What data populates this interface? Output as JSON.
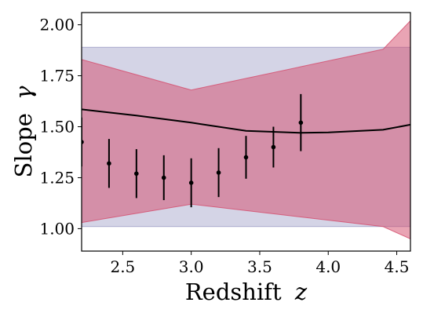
{
  "chart_data": {
    "type": "line",
    "xlabel_text": "Redshift",
    "xlabel_symbol": "z",
    "ylabel_text": "Slope",
    "ylabel_symbol": "γ",
    "xlim": [
      2.2,
      4.6
    ],
    "ylim": [
      0.89,
      2.06
    ],
    "xticks": [
      2.5,
      3.0,
      3.5,
      4.0,
      4.5
    ],
    "xtick_labels": [
      "2.5",
      "3.0",
      "3.5",
      "4.0",
      "4.5"
    ],
    "yticks": [
      1.0,
      1.25,
      1.5,
      1.75,
      2.0
    ],
    "ytick_labels": [
      "1.00",
      "1.25",
      "1.50",
      "1.75",
      "2.00"
    ],
    "grid": false,
    "series": [
      {
        "kind": "band",
        "color": "#8d8dbd",
        "opacity": 0.38,
        "x": [
          2.2,
          4.6
        ],
        "lower": [
          1.01,
          1.01
        ],
        "upper": [
          1.89,
          1.89
        ]
      },
      {
        "kind": "band",
        "color": "#d44a6a",
        "opacity": 0.5,
        "x": [
          2.2,
          3.0,
          4.4,
          4.6
        ],
        "lower": [
          1.03,
          1.12,
          1.01,
          0.95
        ],
        "upper": [
          1.83,
          1.68,
          1.88,
          2.02
        ]
      },
      {
        "kind": "line",
        "color": "#000000",
        "x": [
          2.2,
          2.6,
          3.0,
          3.4,
          3.8,
          4.0,
          4.4,
          4.6
        ],
        "y": [
          1.585,
          1.555,
          1.52,
          1.48,
          1.47,
          1.472,
          1.485,
          1.51
        ]
      },
      {
        "kind": "points",
        "color": "#000000",
        "x": [
          2.2,
          2.4,
          2.6,
          2.8,
          3.0,
          3.2,
          3.4,
          3.6,
          3.8
        ],
        "y": [
          1.425,
          1.32,
          1.27,
          1.25,
          1.225,
          1.275,
          1.35,
          1.4,
          1.52
        ],
        "yerr": [
          0.12,
          0.12,
          0.12,
          0.11,
          0.12,
          0.12,
          0.105,
          0.1,
          0.14
        ]
      }
    ]
  }
}
